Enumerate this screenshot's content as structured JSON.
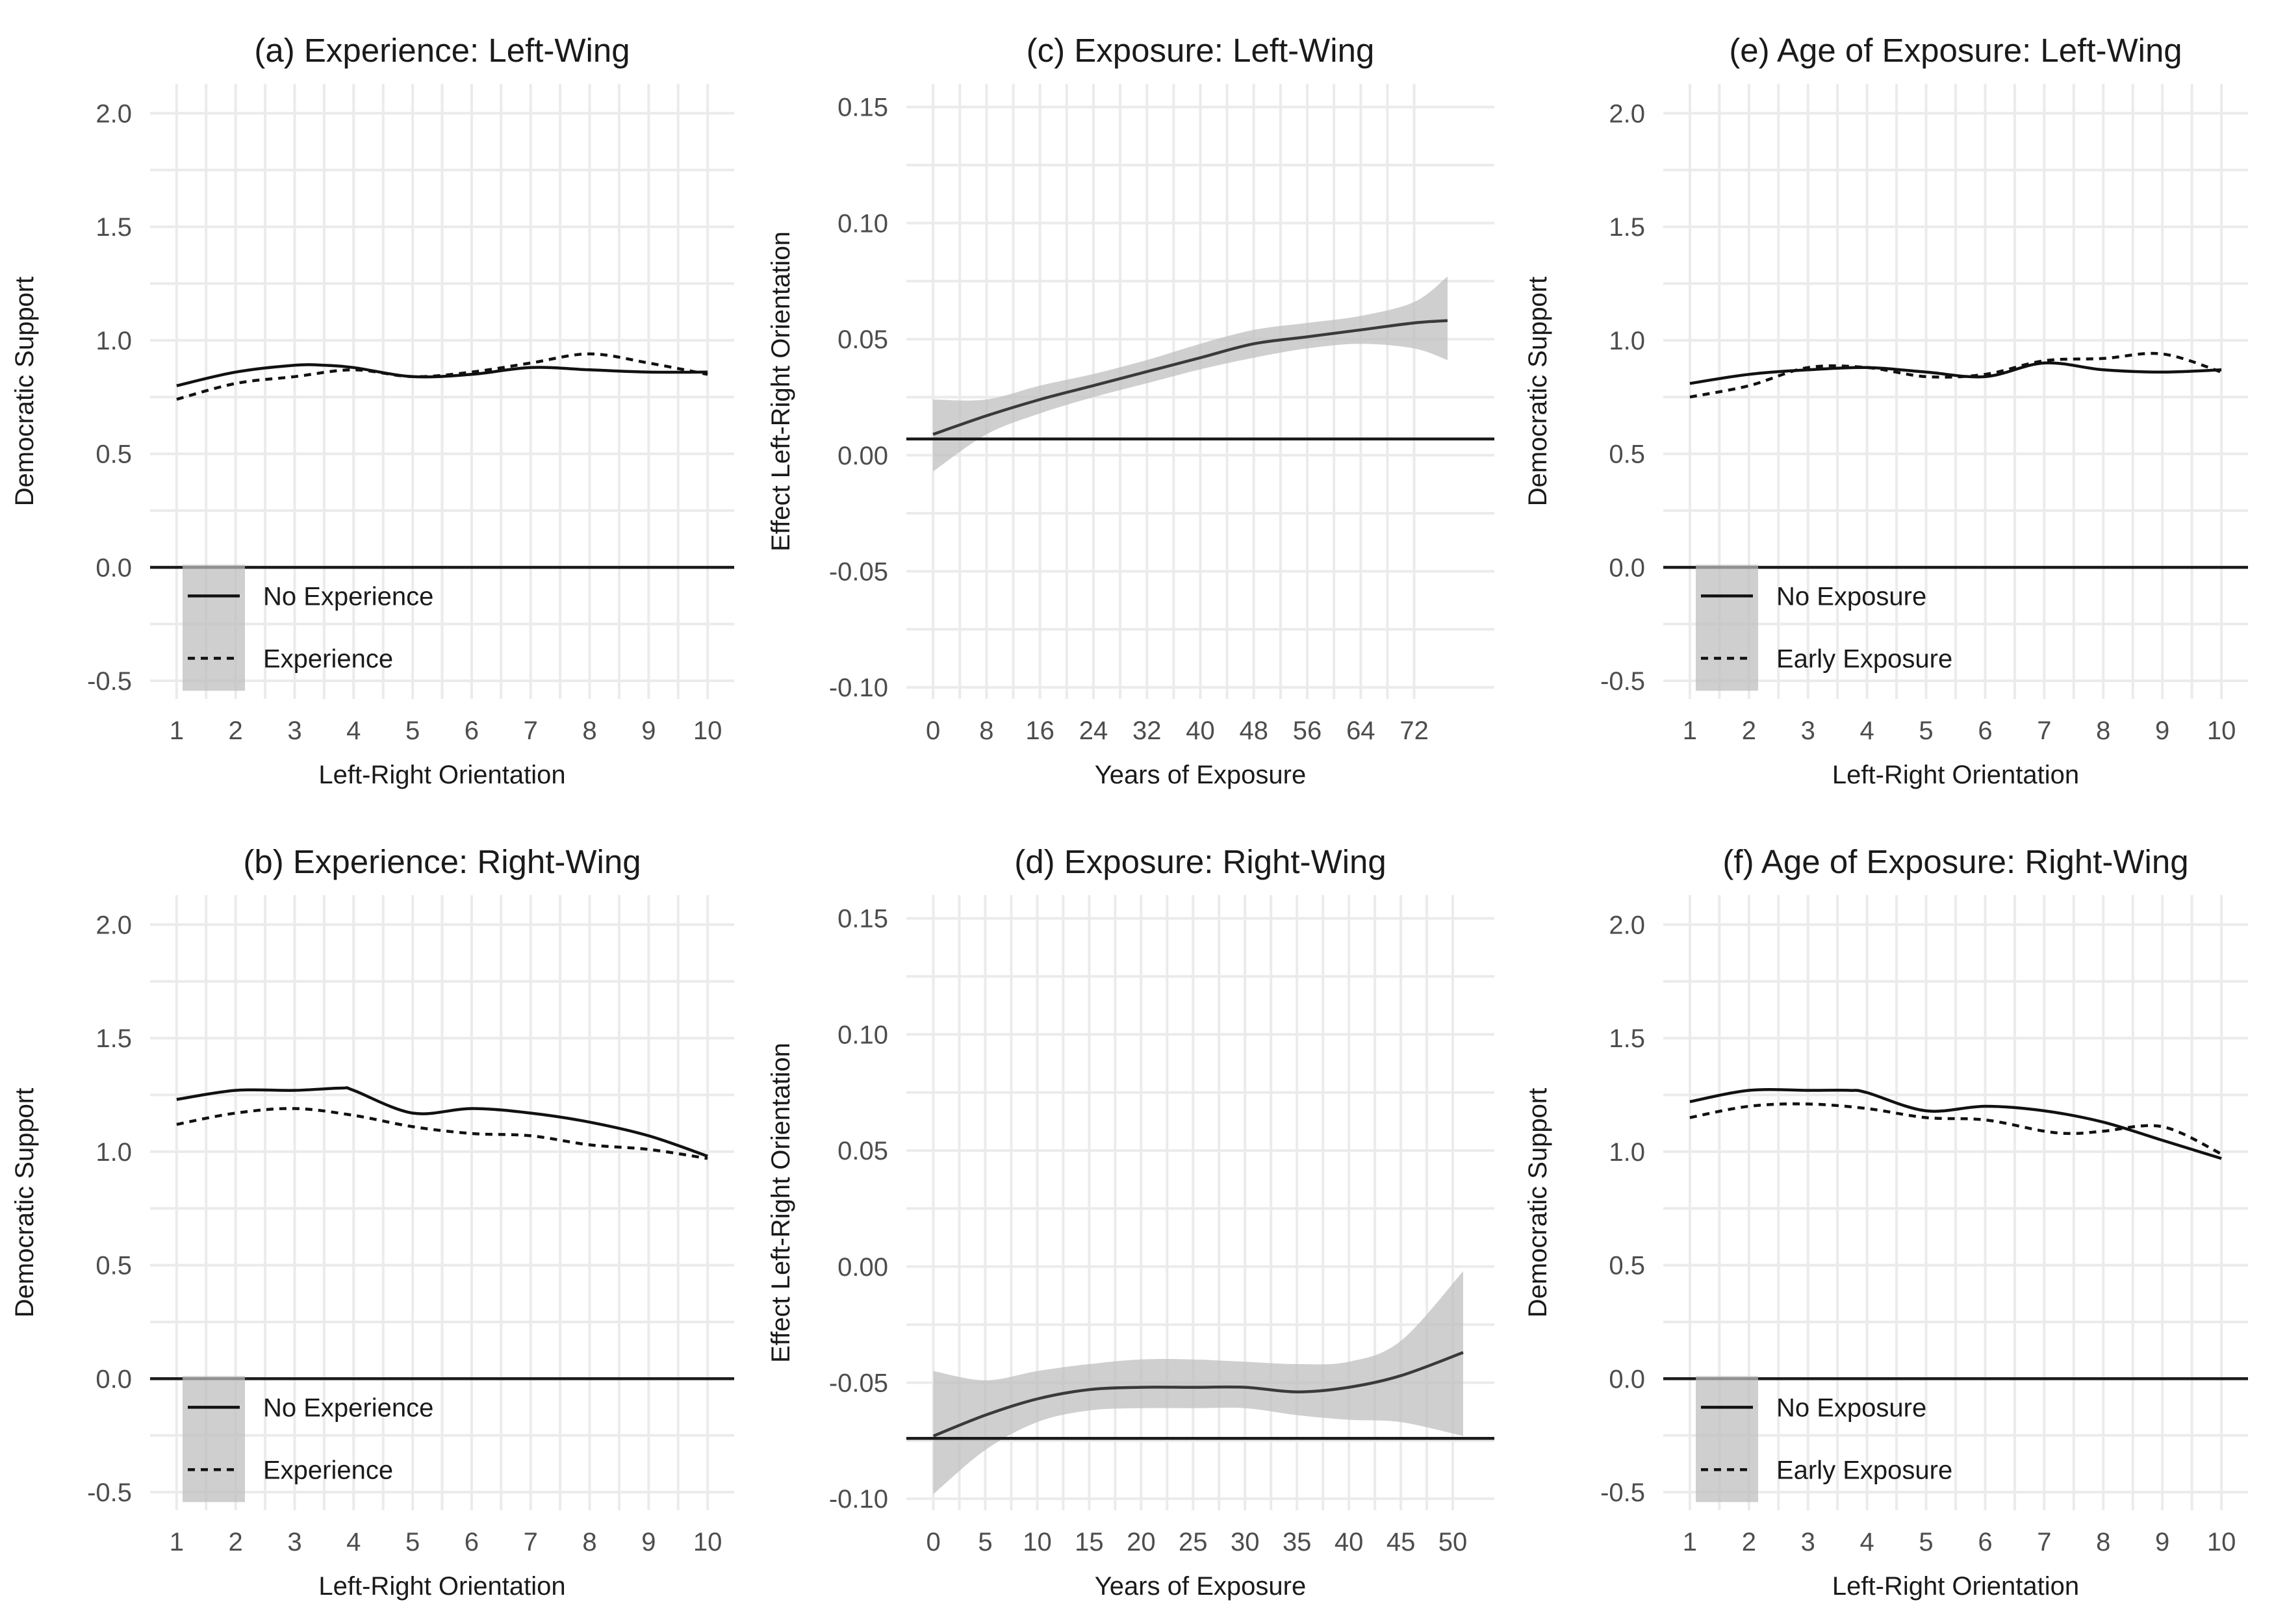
{
  "chart_data": [
    {
      "id": "a",
      "type": "line",
      "title": "(a) Experience: Left-Wing",
      "xlabel": "Left-Right Orientation",
      "ylabel": "Democratic Support",
      "xlim": [
        0.55,
        10.45
      ],
      "ylim": [
        -0.58,
        2.13
      ],
      "x_ticks": [
        1,
        2,
        3,
        4,
        5,
        6,
        7,
        8,
        9,
        10
      ],
      "y_ticks": [
        -0.5,
        0.0,
        0.5,
        1.0,
        1.5,
        2.0
      ],
      "y_tick_labels": [
        "-0.5",
        "0.0",
        "0.5",
        "1.0",
        "1.5",
        "2.0"
      ],
      "reference_line": 0.0,
      "grid": true,
      "legend": {
        "placement": "bottom-left",
        "items": [
          "No Experience",
          "Experience"
        ]
      },
      "series": [
        {
          "name": "No Experience",
          "dash": "solid",
          "x": [
            1,
            2,
            3,
            3.5,
            4,
            5,
            6,
            7,
            8,
            9,
            10
          ],
          "y": [
            0.8,
            0.86,
            0.89,
            0.89,
            0.88,
            0.84,
            0.85,
            0.88,
            0.87,
            0.86,
            0.86
          ]
        },
        {
          "name": "Experience",
          "dash": "dashed",
          "x": [
            1,
            2,
            3,
            4,
            5,
            6,
            7,
            8,
            9,
            10
          ],
          "y": [
            0.74,
            0.81,
            0.84,
            0.87,
            0.84,
            0.86,
            0.9,
            0.94,
            0.9,
            0.85
          ]
        }
      ]
    },
    {
      "id": "c",
      "type": "line",
      "title": "(c) Exposure: Left-Wing",
      "xlabel": "Years of Exposure",
      "ylabel": "Effect Left-Right Orientation",
      "xlim": [
        -4,
        84
      ],
      "ylim": [
        -0.105,
        0.16
      ],
      "x_ticks": [
        0,
        8,
        16,
        24,
        32,
        40,
        48,
        56,
        64,
        72
      ],
      "y_ticks": [
        -0.1,
        -0.05,
        0.0,
        0.05,
        0.1,
        0.15
      ],
      "y_tick_labels": [
        "-0.10",
        "-0.05",
        "0.00",
        "0.05",
        "0.10",
        "0.15"
      ],
      "reference_line": 0.007,
      "grid": true,
      "series": [
        {
          "x": [
            0,
            8,
            16,
            24,
            32,
            40,
            48,
            56,
            64,
            72,
            77
          ],
          "y": [
            0.009,
            0.017,
            0.024,
            0.03,
            0.036,
            0.042,
            0.048,
            0.051,
            0.054,
            0.057,
            0.058
          ],
          "lower": [
            -0.007,
            0.009,
            0.018,
            0.025,
            0.031,
            0.037,
            0.042,
            0.046,
            0.048,
            0.046,
            0.041
          ],
          "upper": [
            0.024,
            0.024,
            0.03,
            0.035,
            0.041,
            0.048,
            0.054,
            0.057,
            0.06,
            0.066,
            0.077
          ]
        }
      ]
    },
    {
      "id": "e",
      "type": "line",
      "title": "(e) Age of Exposure: Left-Wing",
      "xlabel": "Left-Right Orientation",
      "ylabel": "Democratic Support",
      "xlim": [
        0.55,
        10.45
      ],
      "ylim": [
        -0.58,
        2.13
      ],
      "x_ticks": [
        1,
        2,
        3,
        4,
        5,
        6,
        7,
        8,
        9,
        10
      ],
      "y_ticks": [
        -0.5,
        0.0,
        0.5,
        1.0,
        1.5,
        2.0
      ],
      "y_tick_labels": [
        "-0.5",
        "0.0",
        "0.5",
        "1.0",
        "1.5",
        "2.0"
      ],
      "reference_line": 0.0,
      "grid": true,
      "legend": {
        "placement": "bottom-left",
        "items": [
          "No Exposure",
          "Early Exposure"
        ]
      },
      "series": [
        {
          "name": "No Exposure",
          "dash": "solid",
          "x": [
            1,
            2,
            3,
            4,
            5,
            6,
            7,
            8,
            9,
            10
          ],
          "y": [
            0.81,
            0.85,
            0.87,
            0.88,
            0.86,
            0.84,
            0.9,
            0.87,
            0.86,
            0.87
          ]
        },
        {
          "name": "Early Exposure",
          "dash": "dashed",
          "x": [
            1,
            2,
            3,
            4,
            5,
            6,
            7,
            8,
            9,
            10
          ],
          "y": [
            0.75,
            0.8,
            0.88,
            0.88,
            0.84,
            0.85,
            0.91,
            0.92,
            0.94,
            0.86
          ]
        }
      ]
    },
    {
      "id": "b",
      "type": "line",
      "title": "(b) Experience: Right-Wing",
      "xlabel": "Left-Right Orientation",
      "ylabel": "Democratic Support",
      "xlim": [
        0.55,
        10.45
      ],
      "ylim": [
        -0.58,
        2.13
      ],
      "x_ticks": [
        1,
        2,
        3,
        4,
        5,
        6,
        7,
        8,
        9,
        10
      ],
      "y_ticks": [
        -0.5,
        0.0,
        0.5,
        1.0,
        1.5,
        2.0
      ],
      "y_tick_labels": [
        "-0.5",
        "0.0",
        "0.5",
        "1.0",
        "1.5",
        "2.0"
      ],
      "reference_line": 0.0,
      "grid": true,
      "legend": {
        "placement": "bottom-left",
        "items": [
          "No Experience",
          "Experience"
        ]
      },
      "series": [
        {
          "name": "No Experience",
          "dash": "solid",
          "x": [
            1,
            2,
            3,
            3.8,
            4,
            5,
            6,
            7,
            8,
            9,
            10
          ],
          "y": [
            1.23,
            1.27,
            1.27,
            1.28,
            1.27,
            1.17,
            1.19,
            1.17,
            1.13,
            1.07,
            0.98
          ]
        },
        {
          "name": "Experience",
          "dash": "dashed",
          "x": [
            1,
            2,
            3,
            4,
            5,
            6,
            7,
            8,
            9,
            10
          ],
          "y": [
            1.12,
            1.17,
            1.19,
            1.16,
            1.11,
            1.08,
            1.07,
            1.03,
            1.01,
            0.97
          ]
        }
      ]
    },
    {
      "id": "d",
      "type": "line",
      "title": "(d) Exposure: Right-Wing",
      "xlabel": "Years of Exposure",
      "ylabel": "Effect Left-Right Orientation",
      "xlim": [
        -2.6,
        54
      ],
      "ylim": [
        -0.105,
        0.16
      ],
      "x_ticks": [
        0,
        5,
        10,
        15,
        20,
        25,
        30,
        35,
        40,
        45,
        50
      ],
      "y_ticks": [
        -0.1,
        -0.05,
        0.0,
        0.05,
        0.1,
        0.15
      ],
      "y_tick_labels": [
        "-0.10",
        "-0.05",
        "0.00",
        "0.05",
        "0.10",
        "0.15"
      ],
      "reference_line": -0.074,
      "grid": true,
      "series": [
        {
          "x": [
            0,
            5,
            10,
            15,
            20,
            25,
            30,
            35,
            40,
            45,
            51
          ],
          "y": [
            -0.073,
            -0.064,
            -0.057,
            -0.053,
            -0.052,
            -0.052,
            -0.052,
            -0.054,
            -0.052,
            -0.047,
            -0.037
          ],
          "lower": [
            -0.098,
            -0.079,
            -0.067,
            -0.062,
            -0.061,
            -0.061,
            -0.061,
            -0.064,
            -0.066,
            -0.067,
            -0.073
          ],
          "upper": [
            -0.045,
            -0.049,
            -0.045,
            -0.042,
            -0.04,
            -0.04,
            -0.041,
            -0.042,
            -0.041,
            -0.032,
            -0.002
          ]
        }
      ]
    },
    {
      "id": "f",
      "type": "line",
      "title": "(f) Age of Exposure: Right-Wing",
      "xlabel": "Left-Right Orientation",
      "ylabel": "Democratic Support",
      "xlim": [
        0.55,
        10.45
      ],
      "ylim": [
        -0.58,
        2.13
      ],
      "x_ticks": [
        1,
        2,
        3,
        4,
        5,
        6,
        7,
        8,
        9,
        10
      ],
      "y_ticks": [
        -0.5,
        0.0,
        0.5,
        1.0,
        1.5,
        2.0
      ],
      "y_tick_labels": [
        "-0.5",
        "0.0",
        "0.5",
        "1.0",
        "1.5",
        "2.0"
      ],
      "reference_line": 0.0,
      "grid": true,
      "legend": {
        "placement": "bottom-left",
        "items": [
          "No Exposure",
          "Early Exposure"
        ]
      },
      "series": [
        {
          "name": "No Exposure",
          "dash": "solid",
          "x": [
            1,
            2,
            3,
            3.7,
            4,
            5,
            6,
            7,
            8,
            9,
            10
          ],
          "y": [
            1.22,
            1.27,
            1.27,
            1.27,
            1.26,
            1.18,
            1.2,
            1.18,
            1.13,
            1.05,
            0.97
          ]
        },
        {
          "name": "Early Exposure",
          "dash": "dashed",
          "x": [
            1,
            2,
            3,
            4,
            5,
            6,
            7,
            7.5,
            8,
            9,
            10
          ],
          "y": [
            1.15,
            1.2,
            1.21,
            1.19,
            1.15,
            1.14,
            1.09,
            1.08,
            1.09,
            1.11,
            0.99
          ]
        }
      ]
    }
  ]
}
